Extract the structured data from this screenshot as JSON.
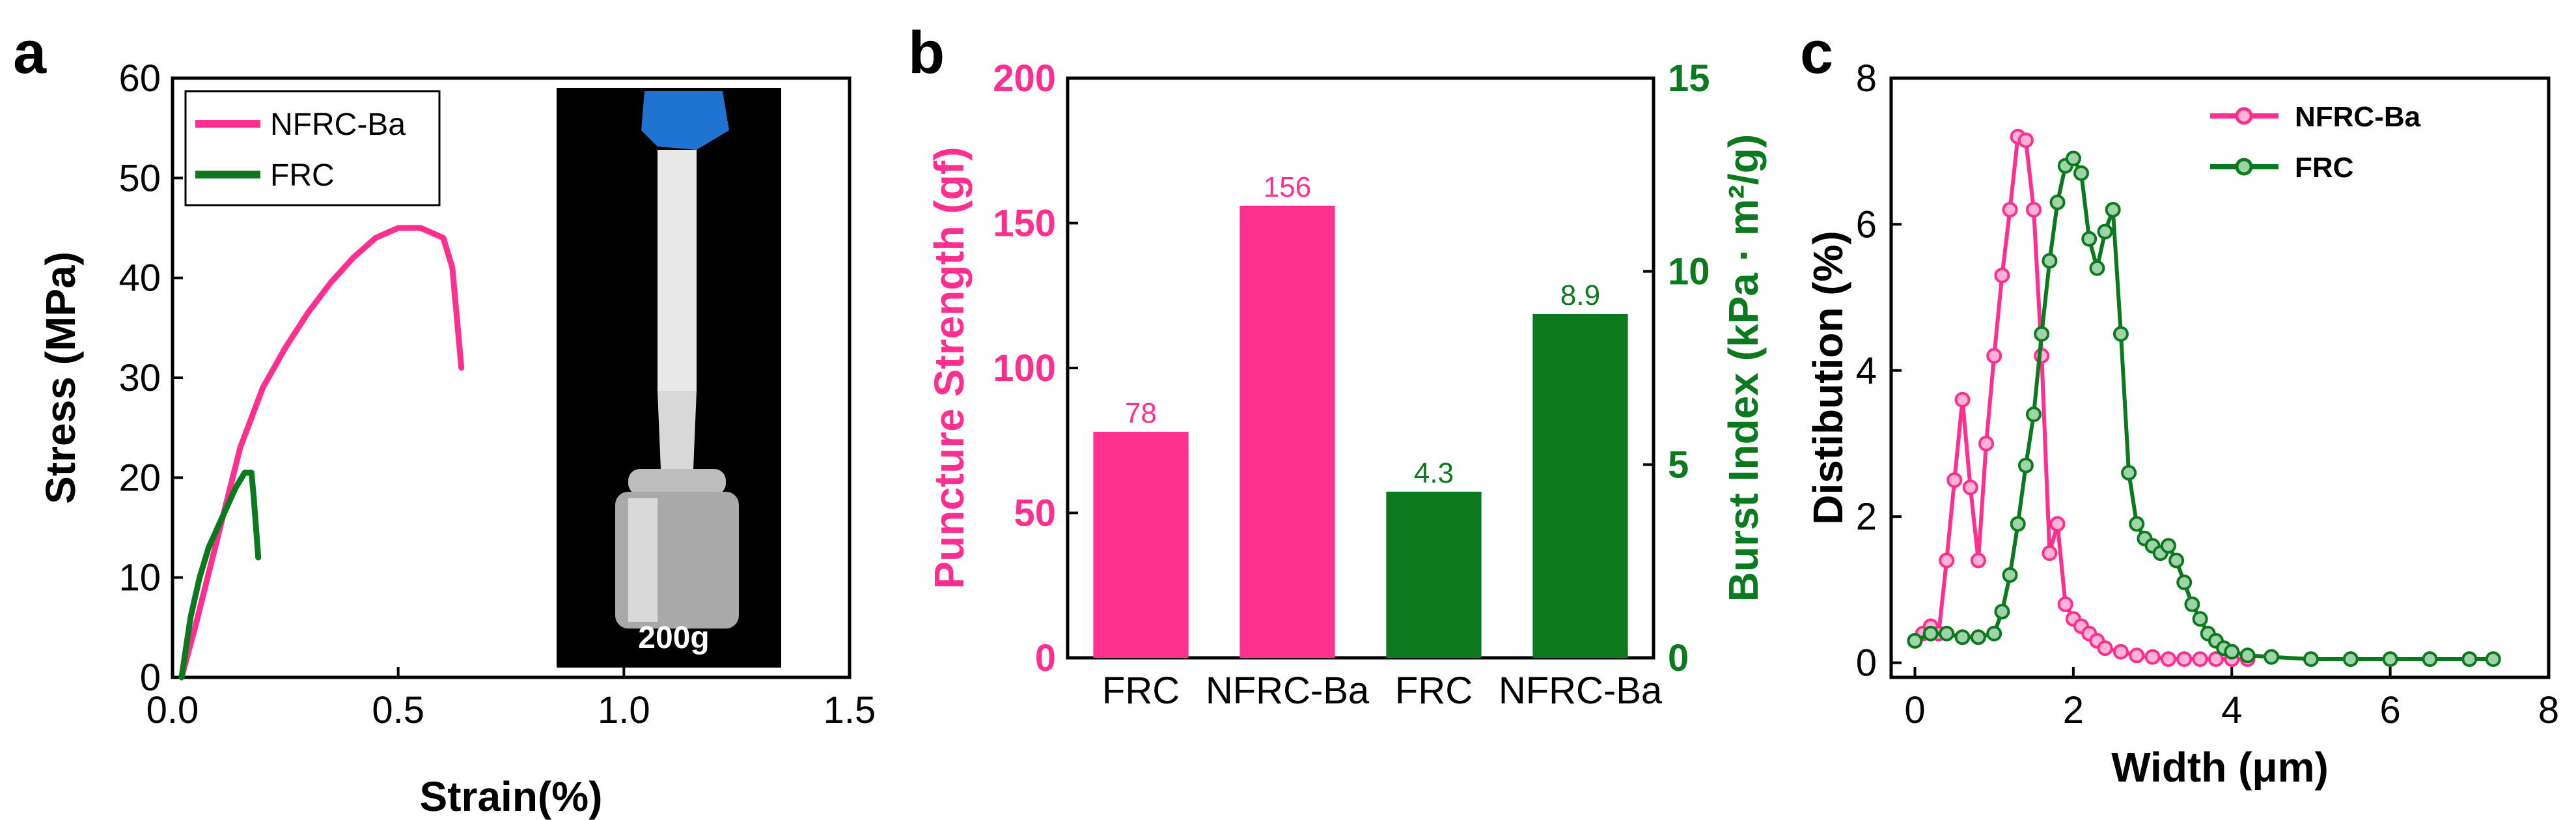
{
  "colors": {
    "pink": "#ff2f8f",
    "green": "#0b7a1e",
    "frame": "#000000",
    "inset_bg": "#000000"
  },
  "chart_data": [
    {
      "panel": "a",
      "type": "line",
      "xlabel": "Strain(%)",
      "ylabel": "Stress (MPa)",
      "xlim": [
        0,
        1.5
      ],
      "ylim": [
        0,
        60
      ],
      "xticks": [
        "0.0",
        "0.5",
        "1.0",
        "1.5"
      ],
      "yticks": [
        "0",
        "10",
        "20",
        "30",
        "40",
        "50",
        "60"
      ],
      "legend_position": "top-left",
      "inset_label": "200g",
      "series": [
        {
          "name": "NFRC-Ba",
          "color": "#ff2f8f",
          "x": [
            0.02,
            0.05,
            0.1,
            0.15,
            0.2,
            0.25,
            0.3,
            0.35,
            0.4,
            0.45,
            0.5,
            0.55,
            0.6,
            0.62,
            0.63,
            0.64
          ],
          "y": [
            0,
            5,
            14,
            23,
            29,
            33,
            36.5,
            39.5,
            42,
            44,
            45,
            45,
            44,
            41,
            36,
            31
          ]
        },
        {
          "name": "FRC",
          "color": "#0b7a1e",
          "x": [
            0.02,
            0.04,
            0.06,
            0.08,
            0.1,
            0.12,
            0.14,
            0.16,
            0.175,
            0.18,
            0.185,
            0.19
          ],
          "y": [
            0,
            6,
            10,
            13,
            15,
            17,
            19,
            20.5,
            20.5,
            18,
            15,
            12
          ]
        }
      ]
    },
    {
      "panel": "b",
      "type": "bar",
      "categories": [
        "FRC",
        "NFRC-Ba",
        "FRC",
        "NFRC-Ba"
      ],
      "ylabel_left": "Puncture Strength (gf)",
      "ylabel_right": "Burst Index (kPa · m²/g)",
      "ylim_left": [
        0,
        200
      ],
      "ylim_right": [
        0,
        15
      ],
      "yticks_left": [
        "0",
        "50",
        "100",
        "150",
        "200"
      ],
      "yticks_right": [
        "0",
        "5",
        "10",
        "15"
      ],
      "series": [
        {
          "axis": "left",
          "color": "#ff2f8f",
          "values": [
            78,
            156,
            null,
            null
          ],
          "labels": [
            "78",
            "156",
            "",
            ""
          ]
        },
        {
          "axis": "right",
          "color": "#0b7a1e",
          "values": [
            null,
            null,
            4.3,
            8.9
          ],
          "labels": [
            "",
            "",
            "4.3",
            "8.9"
          ]
        }
      ]
    },
    {
      "panel": "c",
      "type": "line",
      "xlabel": "Width (μm)",
      "ylabel": "Distibution (%)",
      "xlim": [
        -0.3,
        8
      ],
      "ylim": [
        -0.2,
        8
      ],
      "xticks": [
        "0",
        "2",
        "4",
        "6",
        "8"
      ],
      "yticks": [
        "0",
        "2",
        "4",
        "6",
        "8"
      ],
      "legend_position": "top-right",
      "series": [
        {
          "name": "NFRC-Ba",
          "color": "#ff2f8f",
          "x": [
            0.0,
            0.1,
            0.2,
            0.3,
            0.4,
            0.5,
            0.6,
            0.7,
            0.8,
            0.9,
            1.0,
            1.1,
            1.2,
            1.3,
            1.4,
            1.5,
            1.6,
            1.7,
            1.8,
            1.9,
            2.0,
            2.1,
            2.2,
            2.3,
            2.4,
            2.6,
            2.8,
            3.0,
            3.2,
            3.4,
            3.6,
            3.8,
            4.0,
            4.2
          ],
          "y": [
            0.3,
            0.4,
            0.5,
            0.4,
            1.4,
            2.5,
            3.6,
            2.4,
            1.4,
            3.0,
            4.2,
            5.3,
            6.2,
            7.2,
            7.15,
            6.2,
            4.2,
            1.5,
            1.9,
            0.8,
            0.6,
            0.5,
            0.4,
            0.3,
            0.2,
            0.15,
            0.1,
            0.08,
            0.05,
            0.05,
            0.05,
            0.05,
            0.05,
            0.05
          ]
        },
        {
          "name": "FRC",
          "color": "#0b7a1e",
          "x": [
            0.0,
            0.2,
            0.4,
            0.6,
            0.8,
            1.0,
            1.1,
            1.2,
            1.3,
            1.4,
            1.5,
            1.6,
            1.7,
            1.8,
            1.9,
            2.0,
            2.1,
            2.2,
            2.3,
            2.4,
            2.5,
            2.6,
            2.7,
            2.8,
            2.9,
            3.0,
            3.1,
            3.2,
            3.3,
            3.4,
            3.5,
            3.6,
            3.7,
            3.8,
            3.9,
            4.0,
            4.2,
            4.5,
            5.0,
            5.5,
            6.0,
            6.5,
            7.0,
            7.3
          ],
          "y": [
            0.3,
            0.4,
            0.4,
            0.35,
            0.35,
            0.4,
            0.7,
            1.2,
            1.9,
            2.7,
            3.4,
            4.5,
            5.5,
            6.3,
            6.8,
            6.9,
            6.7,
            5.8,
            5.4,
            5.9,
            6.2,
            4.5,
            2.6,
            1.9,
            1.7,
            1.6,
            1.5,
            1.6,
            1.4,
            1.1,
            0.8,
            0.6,
            0.4,
            0.3,
            0.2,
            0.15,
            0.1,
            0.08,
            0.05,
            0.05,
            0.05,
            0.05,
            0.05,
            0.05
          ]
        }
      ]
    }
  ]
}
